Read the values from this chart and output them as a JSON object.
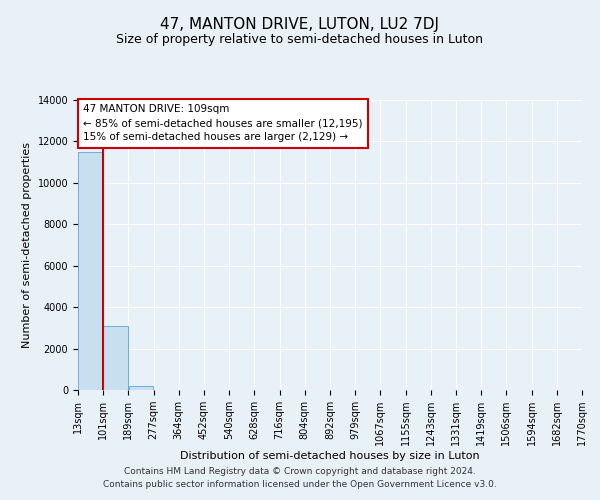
{
  "title": "47, MANTON DRIVE, LUTON, LU2 7DJ",
  "subtitle": "Size of property relative to semi-detached houses in Luton",
  "xlabel": "Distribution of semi-detached houses by size in Luton",
  "ylabel": "Number of semi-detached properties",
  "bin_labels": [
    "13sqm",
    "101sqm",
    "189sqm",
    "277sqm",
    "364sqm",
    "452sqm",
    "540sqm",
    "628sqm",
    "716sqm",
    "804sqm",
    "892sqm",
    "979sqm",
    "1067sqm",
    "1155sqm",
    "1243sqm",
    "1331sqm",
    "1419sqm",
    "1506sqm",
    "1594sqm",
    "1682sqm",
    "1770sqm"
  ],
  "bar_values": [
    11500,
    3100,
    200,
    20,
    5,
    2,
    1,
    0,
    0,
    0,
    0,
    0,
    0,
    0,
    0,
    0,
    0,
    0,
    0,
    0
  ],
  "bar_color": "#c8dff0",
  "bar_edge_color": "#6aaed6",
  "property_line_color": "#cc0000",
  "property_line_xindex": 1,
  "ylim": [
    0,
    14000
  ],
  "yticks": [
    0,
    2000,
    4000,
    6000,
    8000,
    10000,
    12000,
    14000
  ],
  "annotation_line1": "47 MANTON DRIVE: 109sqm",
  "annotation_line2": "← 85% of semi-detached houses are smaller (12,195)",
  "annotation_line3": "15% of semi-detached houses are larger (2,129) →",
  "annotation_box_color": "#cc0000",
  "footer_line1": "Contains HM Land Registry data © Crown copyright and database right 2024.",
  "footer_line2": "Contains public sector information licensed under the Open Government Licence v3.0.",
  "bg_color": "#e8f0f8",
  "plot_bg_color": "#e8f0f8",
  "grid_color": "#ffffff",
  "title_fontsize": 11,
  "subtitle_fontsize": 9,
  "axis_label_fontsize": 8,
  "tick_fontsize": 7,
  "annotation_fontsize": 7.5,
  "footer_fontsize": 6.5
}
